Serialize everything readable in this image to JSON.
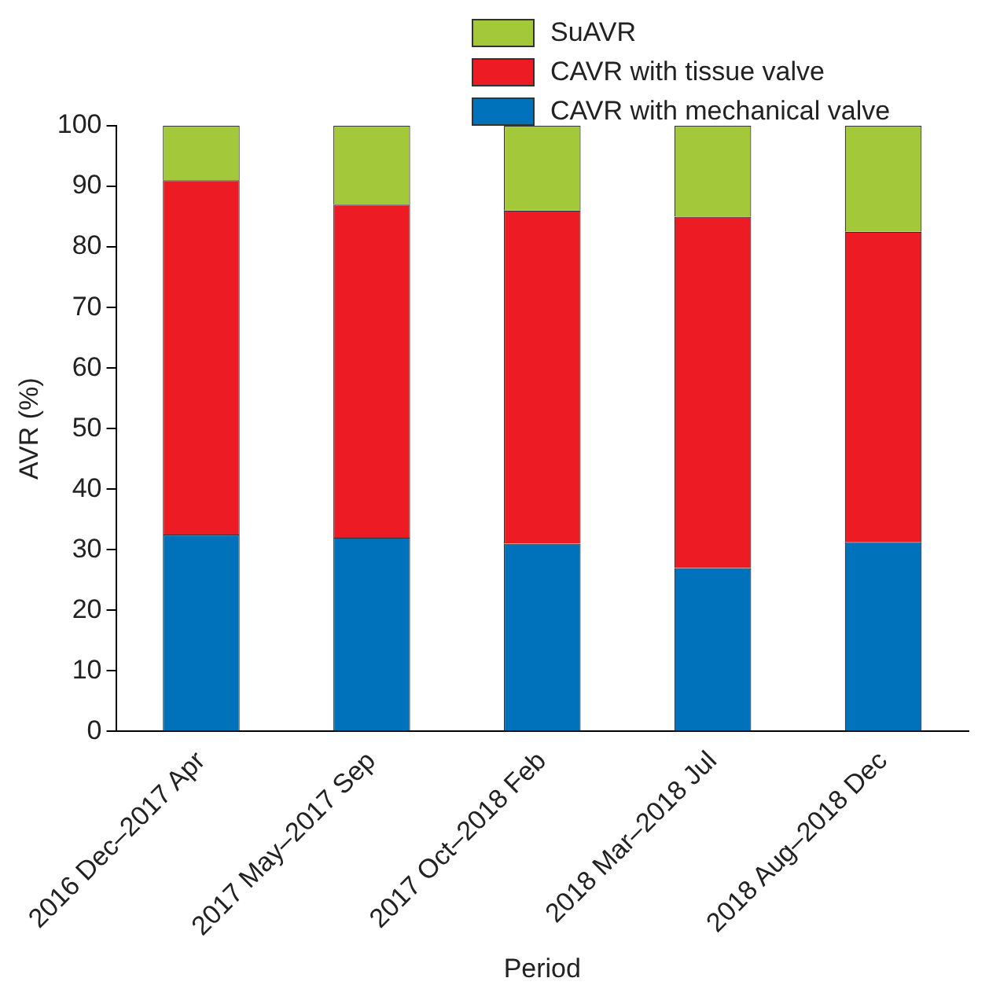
{
  "chart_data": {
    "type": "bar",
    "stacked": true,
    "xlabel": "Period",
    "ylabel": "AVR (%)",
    "categories": [
      "2016 Dec–2017 Apr",
      "2017 May–2017 Sep",
      "2017 Oct–2018 Feb",
      "2018 Mar–2018 Jul",
      "2018 Aug–2018 Dec"
    ],
    "series": [
      {
        "name": "CAVR with mechanical valve",
        "color": "#0072bc",
        "values": [
          32.5,
          32,
          31,
          27,
          31.3
        ]
      },
      {
        "name": "CAVR with tissue valve",
        "color": "#ed1c24",
        "values": [
          58.5,
          55,
          55,
          58,
          51.2
        ]
      },
      {
        "name": "SuAVR",
        "color": "#a3c93a",
        "values": [
          9,
          13,
          14,
          15,
          17.5
        ]
      }
    ],
    "ylim": [
      0,
      100
    ],
    "yticks": [
      0,
      10,
      20,
      30,
      40,
      50,
      60,
      70,
      80,
      90,
      100
    ],
    "grid": false,
    "legend": "top"
  }
}
